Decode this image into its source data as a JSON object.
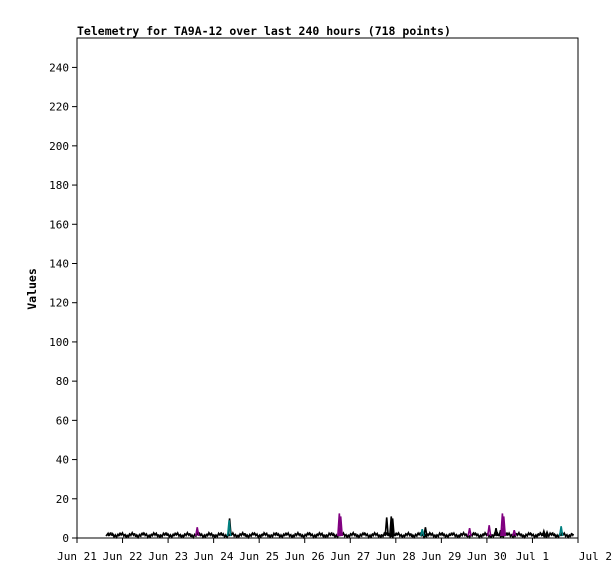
{
  "chart_data": {
    "type": "line",
    "title": "Telemetry for TA9A-12 over last 240 hours (718 points)",
    "xlabel": "",
    "ylabel": "Values",
    "x_tick_labels": [
      "Jun 21",
      "Jun 22",
      "Jun 23",
      "Jun 24",
      "Jun 25",
      "Jun 26",
      "Jun 27",
      "Jun 28",
      "Jun 29",
      "Jun 30",
      "Jul 1",
      "Jul 2"
    ],
    "x_ticks_days": [
      0,
      1,
      2,
      3,
      4,
      5,
      6,
      7,
      8,
      9,
      10,
      11
    ],
    "xlim_days": [
      0,
      11
    ],
    "y_ticks": [
      0,
      20,
      40,
      60,
      80,
      100,
      120,
      140,
      160,
      180,
      200,
      220,
      240
    ],
    "ylim": [
      0,
      255
    ],
    "grid": false,
    "legend": "none",
    "colors": {
      "axis": "#000000",
      "text": "#000000"
    },
    "series": [
      {
        "color": "#000000",
        "baseline": 1.5,
        "x": [
          0.67,
          3.35,
          6.8,
          6.9,
          6.93,
          7.65,
          9.2,
          9.3,
          10.25,
          10.32
        ],
        "values": [
          2,
          10,
          10.5,
          11,
          10,
          5.5,
          5,
          4,
          3.5,
          3
        ]
      },
      {
        "color": "#800080",
        "x": [
          2.64,
          5.76,
          5.79,
          8.62,
          9.05,
          9.34,
          9.37,
          9.6
        ],
        "values": [
          5.5,
          12.5,
          11,
          5,
          6.5,
          12.5,
          11,
          4
        ]
      },
      {
        "color": "#008080",
        "x": [
          3.34,
          7.58,
          10.63
        ],
        "values": [
          9,
          4.5,
          6
        ]
      }
    ]
  }
}
